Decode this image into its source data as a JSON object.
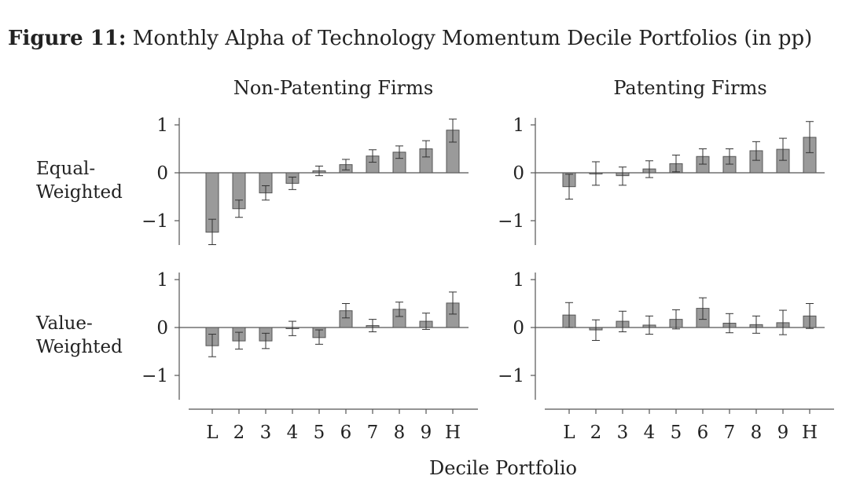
{
  "figure": {
    "title_bold": "Figure 11:",
    "title_rest": "Monthly Alpha of Technology Momentum Decile Portfolios (in pp)",
    "column_titles": [
      "Non-Patenting Firms",
      "Patenting Firms"
    ],
    "row_labels": [
      {
        "line1": "Equal-",
        "line2": "Weighted"
      },
      {
        "line1": "Value-",
        "line2": "Weighted"
      }
    ],
    "xlabel": "Decile Portfolio"
  },
  "chart_data": [
    {
      "type": "bar",
      "panel": "Non-Patenting Firms / Equal-Weighted",
      "categories": [
        "L",
        "2",
        "3",
        "4",
        "5",
        "6",
        "7",
        "8",
        "9",
        "H"
      ],
      "values": [
        -1.24,
        -0.75,
        -0.42,
        -0.22,
        0.04,
        0.17,
        0.35,
        0.43,
        0.5,
        0.89
      ],
      "ci_low": [
        -1.5,
        -0.93,
        -0.57,
        -0.35,
        -0.06,
        0.06,
        0.22,
        0.3,
        0.33,
        0.64
      ],
      "ci_high": [
        -0.97,
        -0.57,
        -0.27,
        -0.09,
        0.14,
        0.28,
        0.48,
        0.56,
        0.67,
        1.12
      ],
      "ylim": [
        -1.5,
        1.1
      ],
      "yticks": [
        "1",
        "0",
        "−1"
      ],
      "ytick_values": [
        1,
        0,
        -1
      ],
      "bar_color": "#9a9a9a"
    },
    {
      "type": "bar",
      "panel": "Patenting Firms / Equal-Weighted",
      "categories": [
        "L",
        "2",
        "3",
        "4",
        "5",
        "6",
        "7",
        "8",
        "9",
        "H"
      ],
      "values": [
        -0.29,
        0.0,
        -0.06,
        0.08,
        0.19,
        0.34,
        0.34,
        0.46,
        0.49,
        0.74
      ],
      "ci_low": [
        -0.55,
        -0.26,
        -0.26,
        -0.1,
        0.02,
        0.18,
        0.18,
        0.26,
        0.26,
        0.42
      ],
      "ci_high": [
        -0.03,
        0.23,
        0.12,
        0.25,
        0.37,
        0.5,
        0.5,
        0.65,
        0.72,
        1.07
      ],
      "ylim": [
        -1.5,
        1.1
      ],
      "yticks": [
        "1",
        "0",
        "−1"
      ],
      "ytick_values": [
        1,
        0,
        -1
      ],
      "bar_color": "#9a9a9a"
    },
    {
      "type": "bar",
      "panel": "Non-Patenting Firms / Value-Weighted",
      "categories": [
        "L",
        "2",
        "3",
        "4",
        "5",
        "6",
        "7",
        "8",
        "9",
        "H"
      ],
      "values": [
        -0.38,
        -0.28,
        -0.28,
        -0.02,
        -0.21,
        0.35,
        0.04,
        0.38,
        0.13,
        0.51
      ],
      "ci_low": [
        -0.61,
        -0.45,
        -0.44,
        -0.17,
        -0.35,
        0.2,
        -0.09,
        0.23,
        -0.04,
        0.28
      ],
      "ci_high": [
        -0.14,
        -0.1,
        -0.12,
        0.13,
        -0.05,
        0.5,
        0.17,
        0.53,
        0.3,
        0.74
      ],
      "ylim": [
        -1.5,
        1.1
      ],
      "yticks": [
        "1",
        "0",
        "−1"
      ],
      "ytick_values": [
        1,
        0,
        -1
      ],
      "bar_color": "#9a9a9a"
    },
    {
      "type": "bar",
      "panel": "Patenting Firms / Value-Weighted",
      "categories": [
        "L",
        "2",
        "3",
        "4",
        "5",
        "6",
        "7",
        "8",
        "9",
        "H"
      ],
      "values": [
        0.26,
        -0.05,
        0.13,
        0.05,
        0.17,
        0.4,
        0.09,
        0.06,
        0.1,
        0.24
      ],
      "ci_low": [
        0.0,
        -0.27,
        -0.09,
        -0.14,
        -0.03,
        0.17,
        -0.11,
        -0.12,
        -0.15,
        -0.02
      ],
      "ci_high": [
        0.52,
        0.16,
        0.34,
        0.24,
        0.37,
        0.62,
        0.29,
        0.24,
        0.36,
        0.5
      ],
      "ylim": [
        -1.5,
        1.1
      ],
      "yticks": [
        "1",
        "0",
        "−1"
      ],
      "ytick_values": [
        1,
        0,
        -1
      ],
      "bar_color": "#9a9a9a"
    }
  ]
}
